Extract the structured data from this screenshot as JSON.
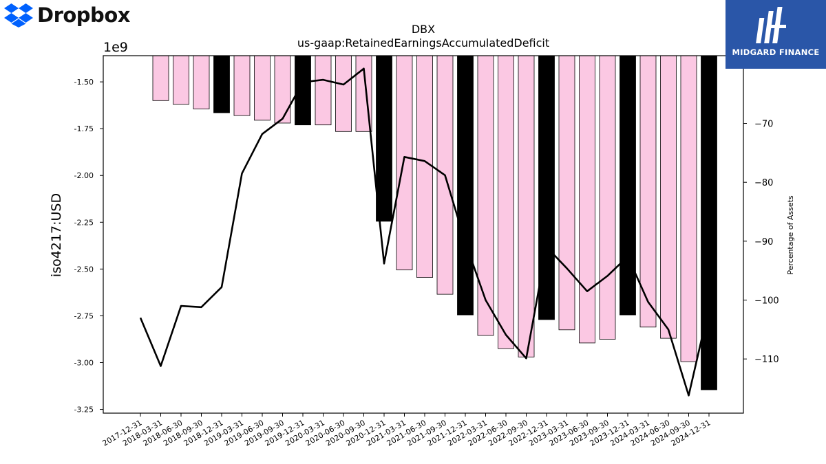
{
  "branding": {
    "left_logo_text": "Dropbox",
    "left_logo_color": "#0061fe",
    "right_logo_text": "MIDGARD FINANCE",
    "right_logo_bg": "#2a56a8"
  },
  "chart_data": {
    "type": "bar",
    "title": "DBX",
    "subtitle": "us-gaap:RetainedEarningsAccumulatedDeficit",
    "ylabel": "iso4217:USD",
    "y_offset_label": "1e9",
    "y2label": "Percentage of Assets",
    "ylim": [
      -3.27,
      -1.36
    ],
    "y2lim": [
      -119.2,
      -58.5
    ],
    "y_ticks": [
      "-1.50",
      "-1.75",
      "-2.00",
      "-2.25",
      "-2.50",
      "-2.75",
      "-3.00",
      "-3.25"
    ],
    "y_tick_values": [
      -1.5,
      -1.75,
      -2.0,
      -2.25,
      -2.5,
      -2.75,
      -3.0,
      -3.25
    ],
    "y2_ticks": [
      "−70",
      "−80",
      "−90",
      "−100",
      "−110"
    ],
    "y2_tick_values": [
      -70,
      -80,
      -90,
      -100,
      -110
    ],
    "categories": [
      "2017-12-31",
      "2018-03-31",
      "2018-06-30",
      "2018-09-30",
      "2018-12-31",
      "2019-03-31",
      "2019-06-30",
      "2019-09-30",
      "2019-12-31",
      "2020-03-31",
      "2020-06-30",
      "2020-09-30",
      "2020-12-31",
      "2021-03-31",
      "2021-06-30",
      "2021-09-30",
      "2021-12-31",
      "2022-03-31",
      "2022-06-30",
      "2022-09-30",
      "2022-12-31",
      "2023-03-31",
      "2023-06-30",
      "2023-09-30",
      "2023-12-31",
      "2024-03-31",
      "2024-06-30",
      "2024-09-30",
      "2024-12-31"
    ],
    "series": [
      {
        "kind": "bar",
        "values": [
          null,
          -1.6,
          -1.62,
          -1.645,
          -1.665,
          -1.68,
          -1.705,
          -1.72,
          -1.73,
          -1.73,
          -1.765,
          -1.765,
          -2.245,
          -2.505,
          -2.545,
          -2.635,
          -2.745,
          -2.855,
          -2.925,
          -2.97,
          -2.77,
          -2.825,
          -2.895,
          -2.875,
          -2.745,
          -2.81,
          -2.87,
          -2.995,
          -3.145
        ],
        "colors": [
          "",
          "#fbc8e3",
          "#fbc8e3",
          "#fbc8e3",
          "#000000",
          "#fbc8e3",
          "#fbc8e3",
          "#fbc8e3",
          "#000000",
          "#fbc8e3",
          "#fbc8e3",
          "#fbc8e3",
          "#000000",
          "#fbc8e3",
          "#fbc8e3",
          "#fbc8e3",
          "#000000",
          "#fbc8e3",
          "#fbc8e3",
          "#fbc8e3",
          "#000000",
          "#fbc8e3",
          "#fbc8e3",
          "#fbc8e3",
          "#000000",
          "#fbc8e3",
          "#fbc8e3",
          "#fbc8e3",
          "#000000"
        ]
      },
      {
        "kind": "line",
        "axis": "right",
        "color": "#000000",
        "values": [
          -103.0,
          -111.2,
          -101.0,
          -101.2,
          -97.8,
          -78.5,
          -71.8,
          -69.2,
          -63.0,
          -62.6,
          -63.4,
          -60.7,
          -93.8,
          -75.7,
          -76.4,
          -78.8,
          -90.2,
          -100.0,
          -105.9,
          -109.9,
          -91.0,
          -94.6,
          -98.5,
          -95.9,
          -92.6,
          -100.3,
          -105.0,
          -116.2,
          -101.2
        ]
      }
    ]
  }
}
